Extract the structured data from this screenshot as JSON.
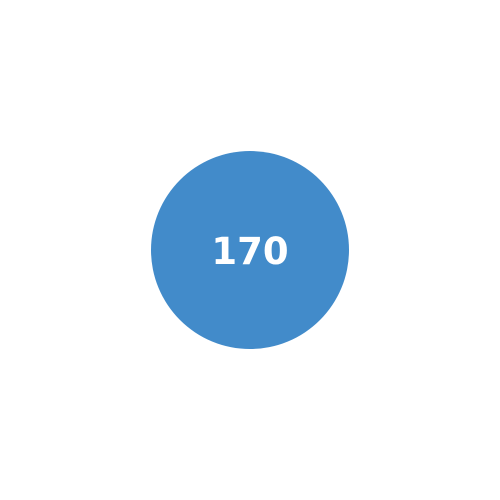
{
  "badge": {
    "value": "170",
    "color": "#428bca",
    "text_color": "#ffffff"
  }
}
